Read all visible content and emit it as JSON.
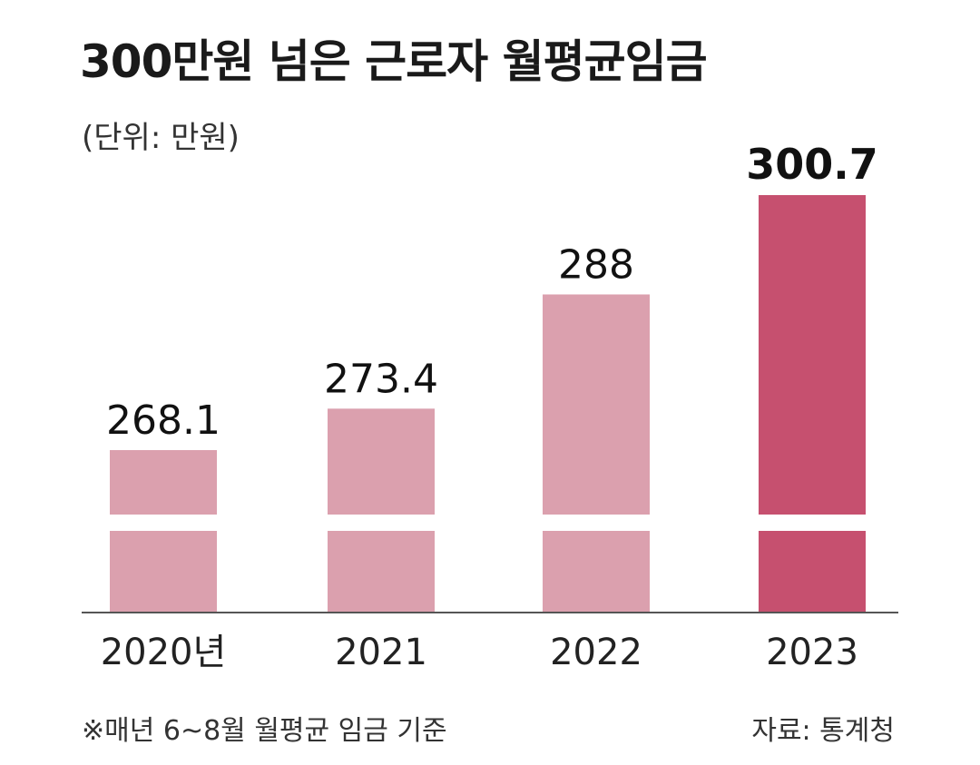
{
  "header": {
    "title": "300만원 넘은 근로자 월평균임금",
    "unit": "(단위: 만원)"
  },
  "footer": {
    "note": "※매년 6~8월 월평균 임금 기준",
    "source": "자료: 통계청"
  },
  "colors": {
    "bar": "#dba0ae",
    "highlight": "#c6506f",
    "axis": "#555555"
  },
  "chart_data": {
    "type": "bar",
    "categories": [
      "2020년",
      "2021",
      "2022",
      "2023"
    ],
    "values": [
      268.1,
      273.4,
      288,
      300.7
    ],
    "value_labels": [
      "268.1",
      "273.4",
      "288",
      "300.7"
    ],
    "highlight_index": 3,
    "axis_break": true,
    "grid": false,
    "title": "300만원 넘은 근로자 월평균임금",
    "ylabel": "(단위: 만원)",
    "xlabel": ""
  }
}
